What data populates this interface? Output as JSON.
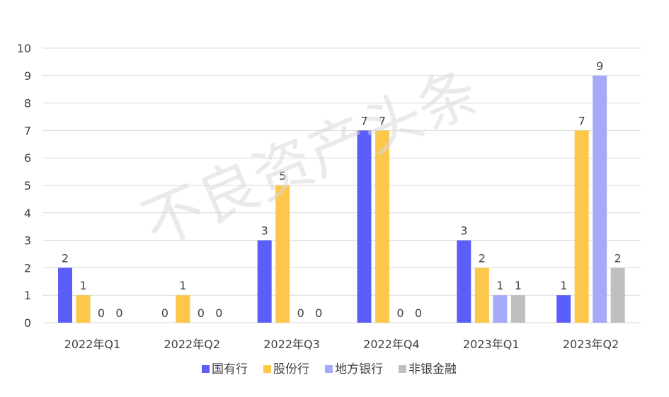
{
  "chart_data": {
    "type": "bar",
    "categories": [
      "2022年Q1",
      "2022年Q2",
      "2022年Q3",
      "2022年Q4",
      "2023年Q1",
      "2023年Q2"
    ],
    "series": [
      {
        "name": "国有行",
        "values": [
          2,
          0,
          3,
          7,
          3,
          1
        ],
        "color": "#5b5ef8"
      },
      {
        "name": "股份行",
        "values": [
          1,
          1,
          5,
          7,
          2,
          7
        ],
        "color": "#fcc74a"
      },
      {
        "name": "地方银行",
        "values": [
          0,
          0,
          0,
          0,
          1,
          9
        ],
        "color": "#a6a9f8"
      },
      {
        "name": "非银金融",
        "values": [
          0,
          0,
          0,
          0,
          1,
          2
        ],
        "color": "#bfbfbf"
      }
    ],
    "ylim": [
      0,
      10
    ],
    "yticks": [
      0,
      1,
      2,
      3,
      4,
      5,
      6,
      7,
      8,
      9,
      10
    ],
    "grid": true,
    "legend_position": "bottom",
    "watermark": "不良资产头条"
  }
}
